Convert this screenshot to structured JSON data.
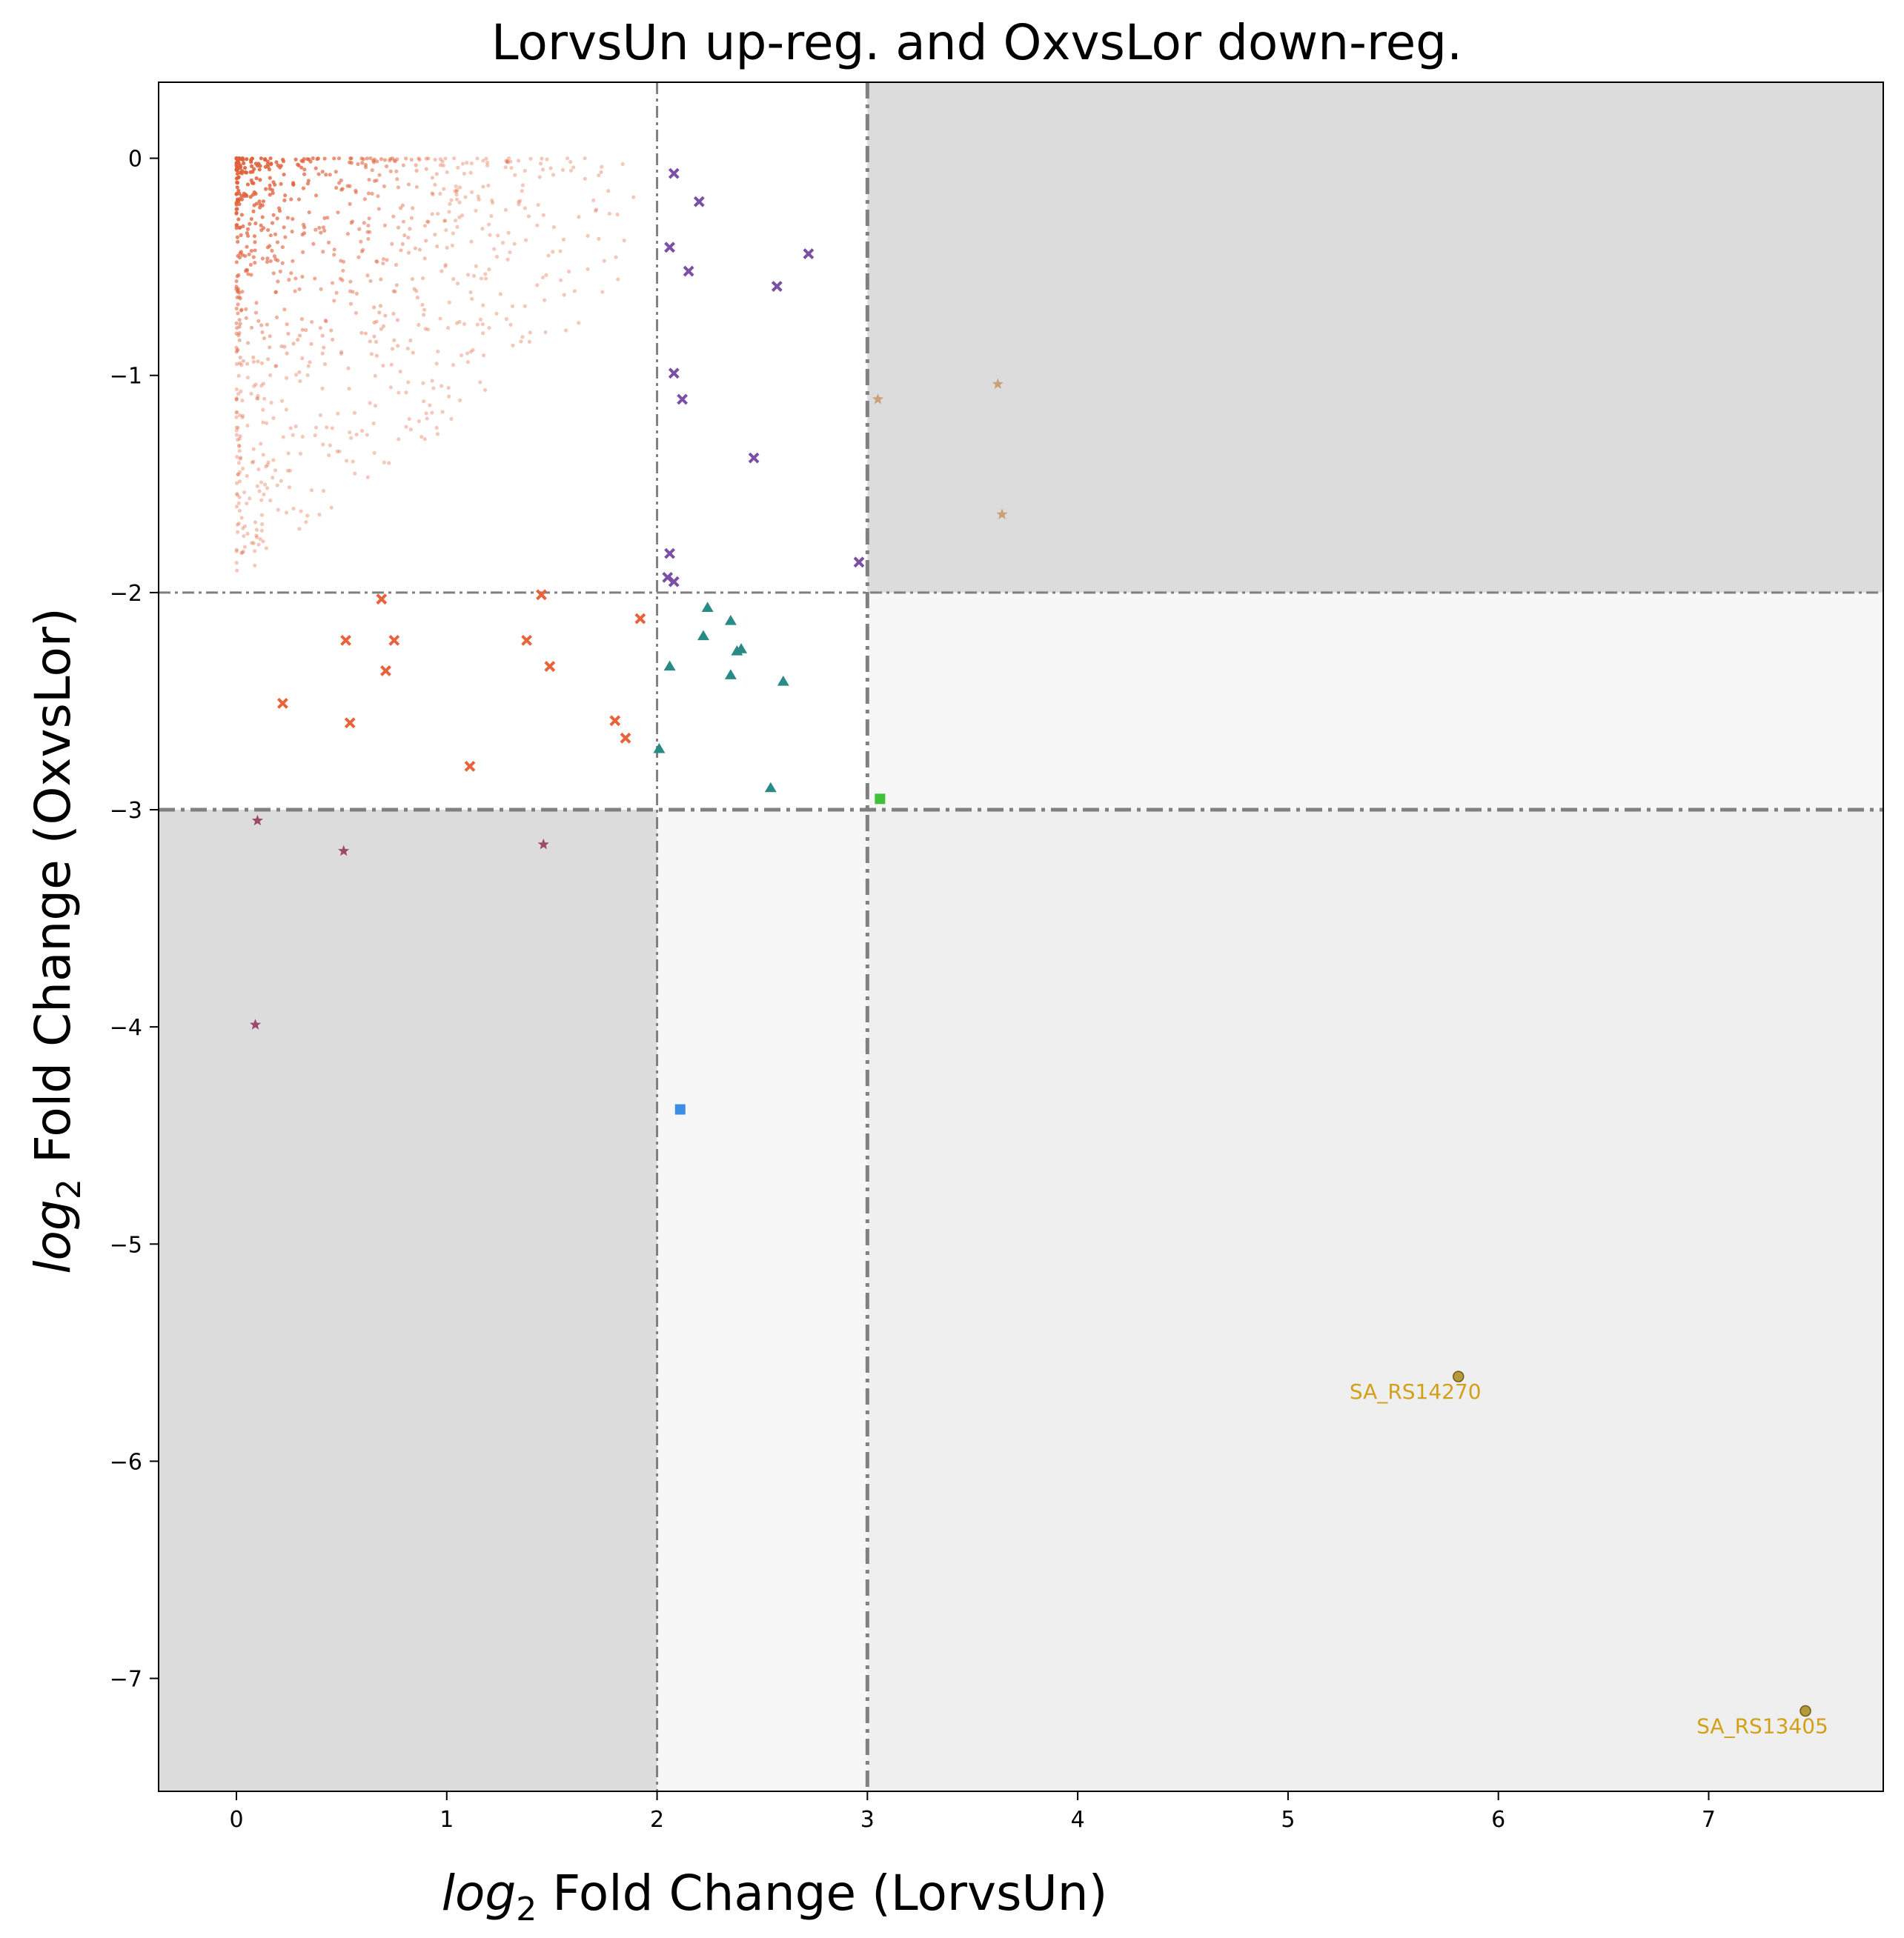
{
  "chart_data": {
    "type": "scatter",
    "title": "LorvsUn up-reg. and OxvsLor down-reg.",
    "xlabel": {
      "italic": "log",
      "sub": "2",
      "rest": " Fold Change (LorvsUn)"
    },
    "ylabel": {
      "italic": "log",
      "sub": "2",
      "rest": " Fold Change (OxvsLor)"
    },
    "xlim": [
      -0.37,
      7.83
    ],
    "ylim": [
      -7.52,
      0.35
    ],
    "xticks": [
      0,
      1,
      2,
      3,
      4,
      5,
      6,
      7
    ],
    "yticks": [
      0,
      -1,
      -2,
      -3,
      -4,
      -5,
      -6,
      -7
    ],
    "ytick_labels": [
      "0",
      "−1",
      "−2",
      "−3",
      "−4",
      "−5",
      "−6",
      "−7"
    ],
    "grid": false,
    "regions": [
      {
        "x": [
          3,
          7.83
        ],
        "y": [
          -2,
          0.35
        ],
        "color": "#dcdcdc"
      },
      {
        "x": [
          -0.37,
          2
        ],
        "y": [
          -7.52,
          -3
        ],
        "color": "#dcdcdc"
      },
      {
        "x": [
          3,
          7.83
        ],
        "y": [
          -3,
          -2
        ],
        "color": "#f7f7f7"
      },
      {
        "x": [
          2,
          3
        ],
        "y": [
          -7.52,
          -3
        ],
        "color": "#f7f7f7"
      },
      {
        "x": [
          3,
          7.83
        ],
        "y": [
          -7.52,
          -3
        ],
        "color": "#efefef"
      }
    ],
    "thresholds": {
      "vertical": [
        2,
        3
      ],
      "horizontal": [
        -2,
        -3
      ],
      "color": "#808080"
    },
    "background_cloud": {
      "color": "#e0603a",
      "x_range": [
        0,
        2.0
      ],
      "y_range": [
        -1.95,
        0
      ],
      "count": 900
    },
    "series": [
      {
        "marker": "x",
        "color": "#7b4fa6",
        "points": [
          [
            2.08,
            -0.07
          ],
          [
            2.2,
            -0.2
          ],
          [
            2.06,
            -0.41
          ],
          [
            2.15,
            -0.52
          ],
          [
            2.72,
            -0.44
          ],
          [
            2.57,
            -0.59
          ],
          [
            2.08,
            -0.99
          ],
          [
            2.12,
            -1.11
          ],
          [
            2.46,
            -1.38
          ],
          [
            2.06,
            -1.82
          ],
          [
            2.05,
            -1.93
          ],
          [
            2.08,
            -1.95
          ],
          [
            2.96,
            -1.86
          ]
        ]
      },
      {
        "marker": "star",
        "color": "#c9a07a",
        "points": [
          [
            3.62,
            -1.04
          ],
          [
            3.05,
            -1.11
          ],
          [
            3.64,
            -1.64
          ]
        ]
      },
      {
        "marker": "x",
        "color": "#e8633a",
        "points": [
          [
            0.69,
            -2.03
          ],
          [
            1.45,
            -2.01
          ],
          [
            0.52,
            -2.22
          ],
          [
            0.75,
            -2.22
          ],
          [
            1.38,
            -2.22
          ],
          [
            0.71,
            -2.36
          ],
          [
            1.49,
            -2.34
          ],
          [
            0.22,
            -2.51
          ],
          [
            0.54,
            -2.6
          ],
          [
            1.8,
            -2.59
          ],
          [
            1.85,
            -2.67
          ],
          [
            1.92,
            -2.12
          ],
          [
            1.11,
            -2.8
          ]
        ]
      },
      {
        "marker": "triangle",
        "color": "#2a8a86",
        "points": [
          [
            2.24,
            -2.07
          ],
          [
            2.35,
            -2.13
          ],
          [
            2.22,
            -2.2
          ],
          [
            2.38,
            -2.27
          ],
          [
            2.4,
            -2.26
          ],
          [
            2.06,
            -2.34
          ],
          [
            2.35,
            -2.38
          ],
          [
            2.6,
            -2.41
          ],
          [
            2.01,
            -2.72
          ],
          [
            2.54,
            -2.9
          ]
        ]
      },
      {
        "marker": "square",
        "color": "#3fc23a",
        "points": [
          [
            3.06,
            -2.95
          ]
        ]
      },
      {
        "marker": "star",
        "color": "#9c4a6a",
        "points": [
          [
            0.1,
            -3.05
          ],
          [
            0.51,
            -3.19
          ],
          [
            1.46,
            -3.16
          ],
          [
            0.09,
            -3.99
          ]
        ]
      },
      {
        "marker": "square",
        "color": "#3a8ee8",
        "points": [
          [
            2.11,
            -4.38
          ]
        ]
      },
      {
        "marker": "circle",
        "color": "#b59a3a",
        "points": [
          [
            5.81,
            -5.61
          ],
          [
            7.46,
            -7.15
          ]
        ]
      }
    ],
    "annotations": [
      {
        "text": "SA_RS14270",
        "x": 5.81,
        "y": -5.61,
        "color": "#d4a017"
      },
      {
        "text": "SA_RS13405",
        "x": 7.46,
        "y": -7.15,
        "color": "#d4a017"
      }
    ]
  }
}
